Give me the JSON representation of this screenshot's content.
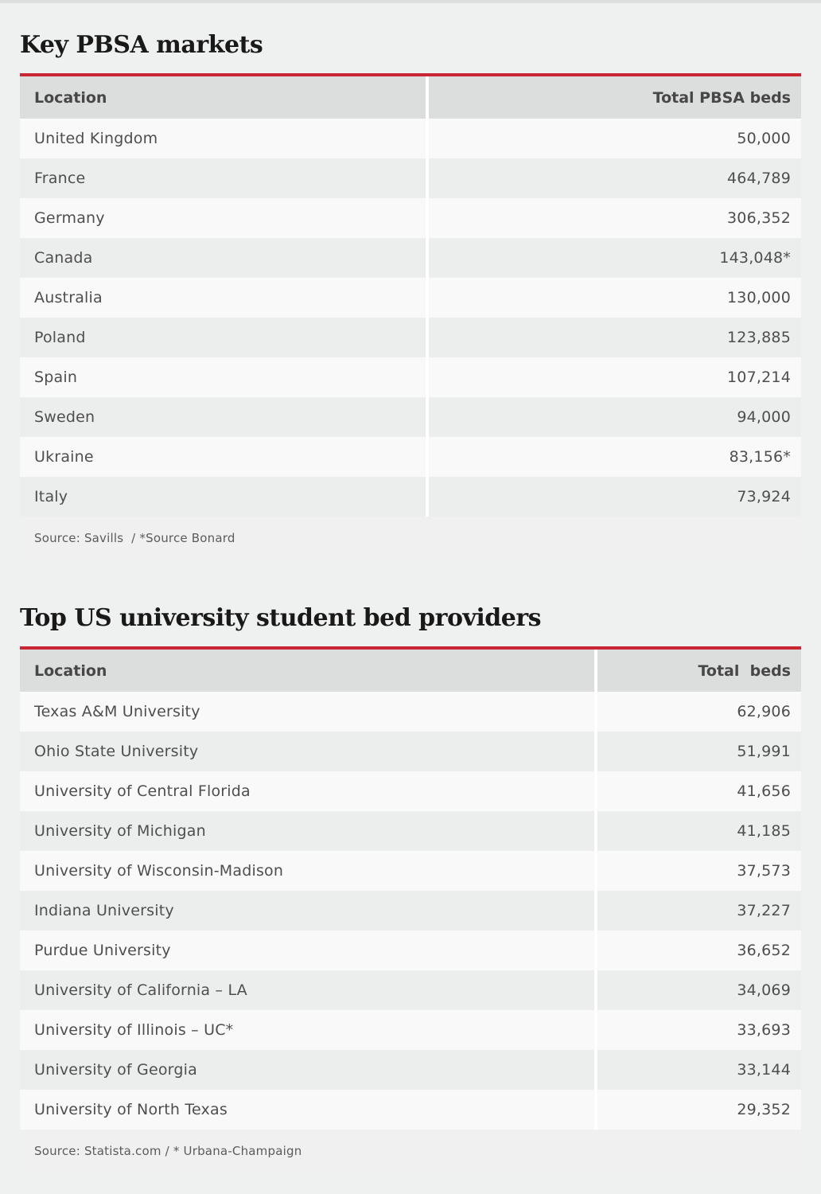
{
  "page": {
    "background": "#eff1f0",
    "top_strip_color": "#dcdedd",
    "accent_red": "#c92634",
    "header_row_bg": "#dcdedd",
    "row_light": "#f8f9f8",
    "row_dark": "#eceeed"
  },
  "chart_data": [
    {
      "type": "table",
      "title": "Key PBSA markets",
      "columns": [
        "Location",
        "Total PBSA beds"
      ],
      "rows": [
        [
          "United Kingdom",
          "50,000"
        ],
        [
          "France",
          "464,789"
        ],
        [
          "Germany",
          "306,352"
        ],
        [
          "Canada",
          "143,048*"
        ],
        [
          "Australia",
          "130,000"
        ],
        [
          "Poland",
          "123,885"
        ],
        [
          "Spain",
          "107,214"
        ],
        [
          "Sweden",
          "94,000"
        ],
        [
          "Ukraine",
          "83,156*"
        ],
        [
          "Italy",
          "73,924"
        ]
      ],
      "source": "Source: Savills  / *Source Bonard"
    },
    {
      "type": "table",
      "title": "Top US university student bed providers",
      "columns": [
        "Location",
        "Total  beds"
      ],
      "rows": [
        [
          "Texas A&M University",
          "62,906"
        ],
        [
          "Ohio State University",
          "51,991"
        ],
        [
          "University of Central Florida",
          "41,656"
        ],
        [
          "University of Michigan",
          "41,185"
        ],
        [
          "University of Wisconsin-Madison",
          "37,573"
        ],
        [
          "Indiana University",
          "37,227"
        ],
        [
          "Purdue University",
          "36,652"
        ],
        [
          "University of California – LA",
          "34,069"
        ],
        [
          "University of Illinois – UC*",
          "33,693"
        ],
        [
          "University of Georgia",
          "33,144"
        ],
        [
          "University of North Texas",
          "29,352"
        ]
      ],
      "source": "Source: Statista.com / * Urbana-Champaign"
    }
  ]
}
